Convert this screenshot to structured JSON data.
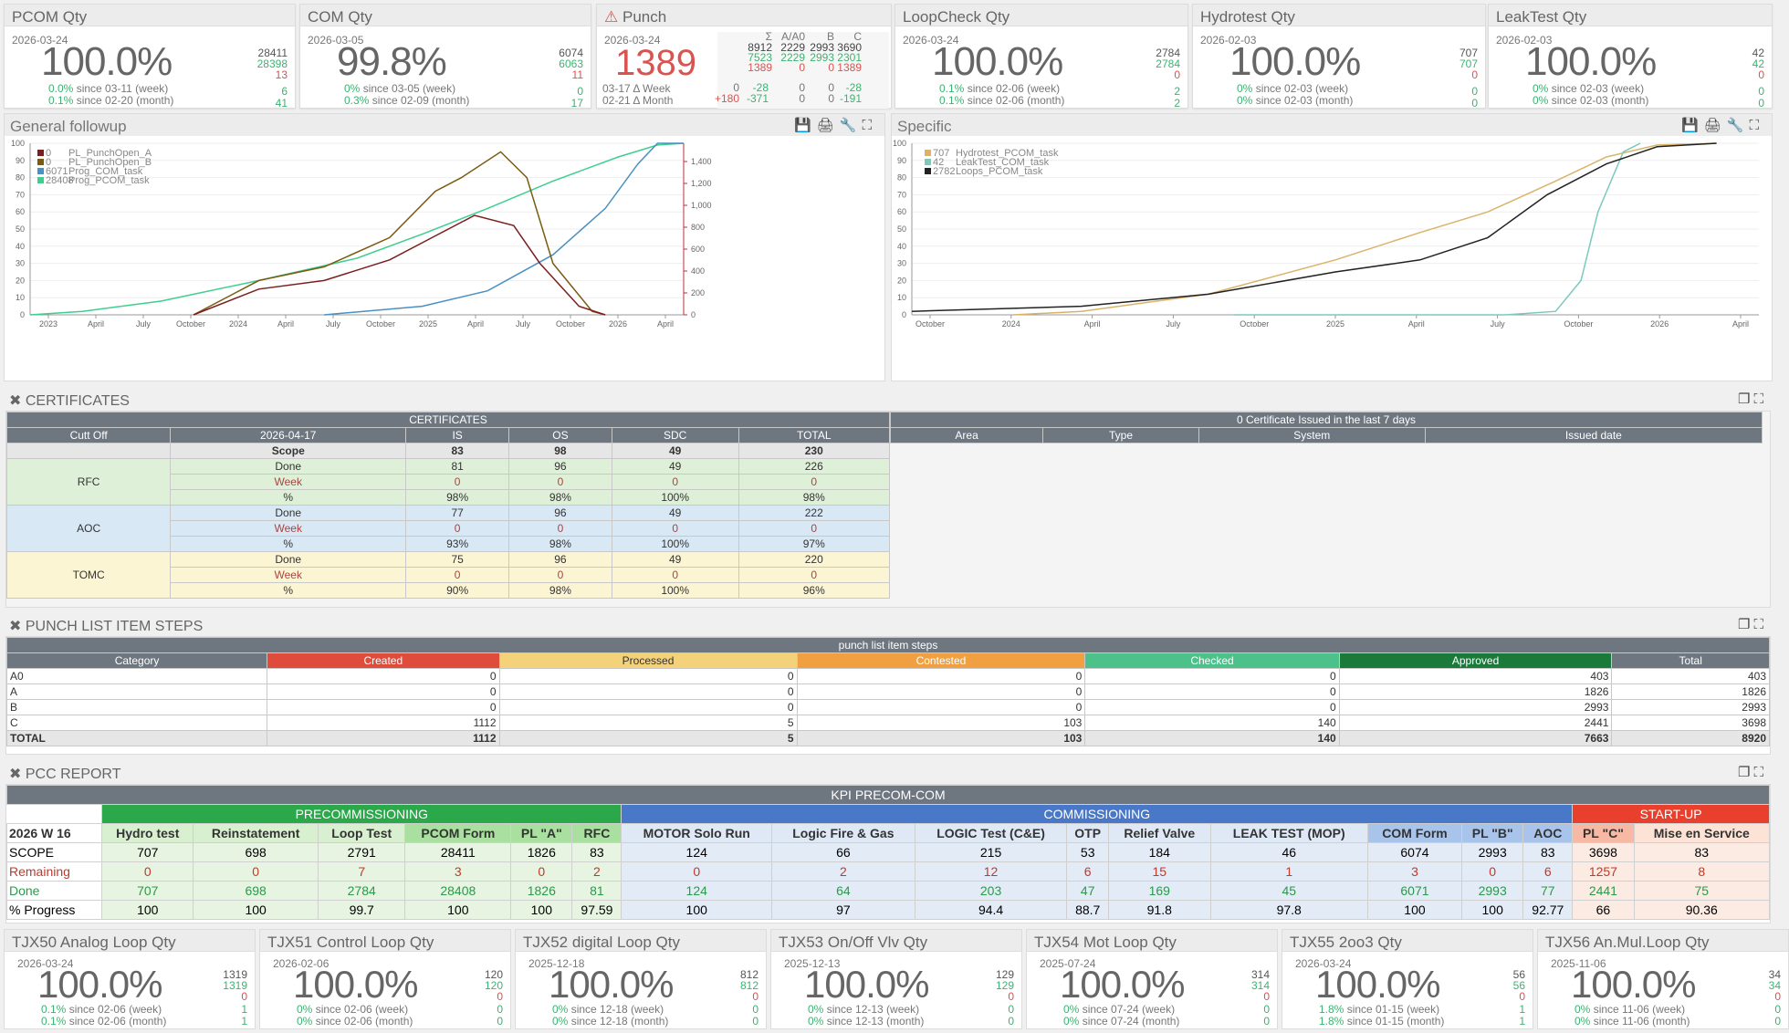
{
  "kpis": [
    {
      "title": "PCOM Qty",
      "date": "2026-03-24",
      "pct": "100.0%",
      "total": "28411",
      "done": "28398",
      "rem": "13",
      "w": "0.0%",
      "wlabel": "since 03-11 (week)",
      "m": "0.1%",
      "mlabel": "since 02-20 (month)",
      "wv": "6",
      "mv": "41"
    },
    {
      "title": "COM Qty",
      "date": "2026-03-05",
      "pct": "99.8%",
      "total": "6074",
      "done": "6063",
      "rem": "11",
      "w": "0%",
      "wlabel": "since 03-05 (week)",
      "m": "0.3%",
      "mlabel": "since 02-09 (month)",
      "wv": "0",
      "mv": "17"
    },
    {
      "title": "LoopCheck Qty",
      "date": "2026-03-24",
      "pct": "100.0%",
      "total": "2784",
      "done": "2784",
      "rem": "0",
      "w": "0.1%",
      "wlabel": "since 02-06 (week)",
      "m": "0.1%",
      "mlabel": "since 02-06 (month)",
      "wv": "2",
      "mv": "2"
    },
    {
      "title": "Hydrotest Qty",
      "date": "2026-02-03",
      "pct": "100.0%",
      "total": "707",
      "done": "707",
      "rem": "0",
      "w": "0%",
      "wlabel": "since 02-03 (week)",
      "m": "0%",
      "mlabel": "since 02-03 (month)",
      "wv": "0",
      "mv": "0"
    },
    {
      "title": "LeakTest Qty",
      "date": "2026-02-03",
      "pct": "100.0%",
      "total": "42",
      "done": "42",
      "rem": "0",
      "w": "0%",
      "wlabel": "since 02-03 (week)",
      "m": "0%",
      "mlabel": "since 02-03 (month)",
      "wv": "0",
      "mv": "0"
    }
  ],
  "punch_kpi": {
    "title": "Punch",
    "date": "2026-03-24",
    "value": "1389",
    "cols": [
      "Σ",
      "A/A0",
      "B",
      "C"
    ],
    "row1": [
      "8912",
      "2229",
      "2993",
      "3690"
    ],
    "row2": [
      "7523",
      "2229",
      "2993",
      "2301"
    ],
    "row3": [
      "1389",
      "0",
      "0",
      "1389"
    ],
    "week_label": "03-17 Δ Week",
    "week": [
      "0",
      "-28",
      "0",
      "0",
      "-28"
    ],
    "month_label": "02-21 Δ Month",
    "month": [
      "+180",
      "-371",
      "0",
      "0",
      "-191"
    ]
  },
  "general": {
    "title": "General followup",
    "legend": [
      {
        "val": "0",
        "name": "PL_PunchOpen_A",
        "color": "#7a1f1f"
      },
      {
        "val": "0",
        "name": "PL_PunchOpen_B",
        "color": "#7a5a10"
      },
      {
        "val": "6071",
        "name": "Prog_COM_task",
        "color": "#4a90c0"
      },
      {
        "val": "28408",
        "name": "Prog_PCOM_task",
        "color": "#3ecf8e"
      }
    ],
    "yticks": [
      "100",
      "90",
      "80",
      "70",
      "60",
      "50",
      "40",
      "30",
      "20",
      "10",
      "0"
    ],
    "y2ticks": [
      "1,400",
      "1,200",
      "1,000",
      "800",
      "600",
      "400",
      "200",
      "0"
    ],
    "xticks": [
      "2023",
      "April",
      "July",
      "October",
      "2024",
      "April",
      "July",
      "October",
      "2025",
      "April",
      "July",
      "October",
      "2026",
      "April"
    ]
  },
  "specific": {
    "title": "Specific",
    "legend": [
      {
        "val": "707",
        "name": "Hydrotest_PCOM_task",
        "color": "#d9b36a"
      },
      {
        "val": "42",
        "name": "LeakTest_COM_task",
        "color": "#7cc8bd"
      },
      {
        "val": "2782",
        "name": "Loops_PCOM_task",
        "color": "#222222"
      }
    ],
    "yticks": [
      "100",
      "90",
      "80",
      "70",
      "60",
      "50",
      "40",
      "30",
      "20",
      "10",
      "0"
    ],
    "xticks": [
      "October",
      "2024",
      "April",
      "July",
      "October",
      "2025",
      "April",
      "July",
      "October",
      "2026",
      "April"
    ]
  },
  "certificates": {
    "section": "CERTIFICATES",
    "header": "CERTIFICATES",
    "cols": [
      "Cutt Off",
      "2026-04-17",
      "IS",
      "OS",
      "SDC",
      "TOTAL"
    ],
    "scope": [
      "Scope",
      "83",
      "98",
      "49",
      "230"
    ],
    "groups": [
      {
        "name": "RFC",
        "rows": [
          [
            "Done",
            "81",
            "96",
            "49",
            "226"
          ],
          [
            "Week",
            "0",
            "0",
            "0",
            "0"
          ],
          [
            "%",
            "98%",
            "98%",
            "100%",
            "98%"
          ]
        ]
      },
      {
        "name": "AOC",
        "rows": [
          [
            "Done",
            "77",
            "96",
            "49",
            "222"
          ],
          [
            "Week",
            "0",
            "0",
            "0",
            "0"
          ],
          [
            "%",
            "93%",
            "98%",
            "100%",
            "97%"
          ]
        ]
      },
      {
        "name": "TOMC",
        "rows": [
          [
            "Done",
            "75",
            "96",
            "49",
            "220"
          ],
          [
            "Week",
            "0",
            "0",
            "0",
            "0"
          ],
          [
            "%",
            "90%",
            "98%",
            "100%",
            "96%"
          ]
        ]
      }
    ],
    "issued_header": "0 Certificate Issued in the last 7 days",
    "issued_cols": [
      "Area",
      "Type",
      "System",
      "Issued date"
    ]
  },
  "punch_steps": {
    "section": "PUNCH LIST ITEM STEPS",
    "header": "punch list item steps",
    "cols": [
      "Category",
      "Created",
      "Processed",
      "Contested",
      "Checked",
      "Approved",
      "Total"
    ],
    "colors": [
      "",
      "#e04c3c",
      "#f4d27a",
      "#f0a040",
      "#4cc28a",
      "#1a7a3a",
      ""
    ],
    "rows": [
      [
        "A0",
        "0",
        "0",
        "0",
        "0",
        "403",
        "403"
      ],
      [
        "A",
        "0",
        "0",
        "0",
        "0",
        "1826",
        "1826"
      ],
      [
        "B",
        "0",
        "0",
        "0",
        "0",
        "2993",
        "2993"
      ],
      [
        "C",
        "1112",
        "5",
        "103",
        "140",
        "2441",
        "3698"
      ],
      [
        "TOTAL",
        "1112",
        "5",
        "103",
        "140",
        "7663",
        "8920"
      ]
    ]
  },
  "pcc": {
    "section": "PCC REPORT",
    "header": "KPI PRECOM-COM",
    "groups": [
      "PRECOMMISSIONING",
      "COMMISSIONING",
      "START-UP"
    ],
    "week": "2026 W 16",
    "cols": [
      "Hydro test",
      "Reinstatement",
      "Loop Test",
      "PCOM Form",
      "PL \"A\"",
      "RFC",
      "MOTOR Solo Run",
      "Logic Fire & Gas",
      "LOGIC Test (C&E)",
      "OTP",
      "Relief Valve",
      "LEAK TEST (MOP)",
      "COM Form",
      "PL \"B\"",
      "AOC",
      "PL \"C\"",
      "Mise en Service"
    ],
    "rows": [
      {
        "label": "SCOPE",
        "vals": [
          "707",
          "698",
          "2791",
          "28411",
          "1826",
          "83",
          "124",
          "66",
          "215",
          "53",
          "184",
          "46",
          "6074",
          "2993",
          "83",
          "3698",
          "83"
        ]
      },
      {
        "label": "Remaining",
        "vals": [
          "0",
          "0",
          "7",
          "3",
          "0",
          "2",
          "0",
          "2",
          "12",
          "6",
          "15",
          "1",
          "3",
          "0",
          "6",
          "1257",
          "8"
        ]
      },
      {
        "label": "Done",
        "vals": [
          "707",
          "698",
          "2784",
          "28408",
          "1826",
          "81",
          "124",
          "64",
          "203",
          "47",
          "169",
          "45",
          "6071",
          "2993",
          "77",
          "2441",
          "75"
        ]
      },
      {
        "label": "% Progress",
        "vals": [
          "100",
          "100",
          "99.7",
          "100",
          "100",
          "97.59",
          "100",
          "97",
          "94.4",
          "88.7",
          "91.8",
          "97.8",
          "100",
          "100",
          "92.77",
          "66",
          "90.36"
        ]
      }
    ]
  },
  "bottom_kpis": [
    {
      "title": "TJX50 Analog Loop Qty",
      "date": "2026-03-24",
      "pct": "100.0%",
      "total": "1319",
      "done": "1319",
      "rem": "0",
      "w": "0.1%",
      "wlabel": "since 02-06 (week)",
      "m": "0.1%",
      "mlabel": "since 02-06 (month)",
      "wv": "1",
      "mv": "1"
    },
    {
      "title": "TJX51 Control Loop Qty",
      "date": "2026-02-06",
      "pct": "100.0%",
      "total": "120",
      "done": "120",
      "rem": "0",
      "w": "0%",
      "wlabel": "since 02-06 (week)",
      "m": "0%",
      "mlabel": "since 02-06 (month)",
      "wv": "0",
      "mv": "0"
    },
    {
      "title": "TJX52 digital Loop Qty",
      "date": "2025-12-18",
      "pct": "100.0%",
      "total": "812",
      "done": "812",
      "rem": "0",
      "w": "0%",
      "wlabel": "since 12-18 (week)",
      "m": "0%",
      "mlabel": "since 12-18 (month)",
      "wv": "0",
      "mv": "0"
    },
    {
      "title": "TJX53 On/Off Vlv Qty",
      "date": "2025-12-13",
      "pct": "100.0%",
      "total": "129",
      "done": "129",
      "rem": "0",
      "w": "0%",
      "wlabel": "since 12-13 (week)",
      "m": "0%",
      "mlabel": "since 12-13 (month)",
      "wv": "0",
      "mv": "0"
    },
    {
      "title": "TJX54 Mot Loop Qty",
      "date": "2025-07-24",
      "pct": "100.0%",
      "total": "314",
      "done": "314",
      "rem": "0",
      "w": "0%",
      "wlabel": "since 07-24 (week)",
      "m": "0%",
      "mlabel": "since 07-24 (month)",
      "wv": "0",
      "mv": "0"
    },
    {
      "title": "TJX55 2oo3 Qty",
      "date": "2026-03-24",
      "pct": "100.0%",
      "total": "56",
      "done": "56",
      "rem": "0",
      "w": "1.8%",
      "wlabel": "since 01-15 (week)",
      "m": "1.8%",
      "mlabel": "since 01-15 (month)",
      "wv": "1",
      "mv": "1"
    },
    {
      "title": "TJX56 An.Mul.Loop Qty",
      "date": "2025-11-06",
      "pct": "100.0%",
      "total": "34",
      "done": "34",
      "rem": "0",
      "w": "0%",
      "wlabel": "since 11-06 (week)",
      "m": "0%",
      "mlabel": "since 11-06 (month)",
      "wv": "0",
      "mv": "0"
    }
  ]
}
